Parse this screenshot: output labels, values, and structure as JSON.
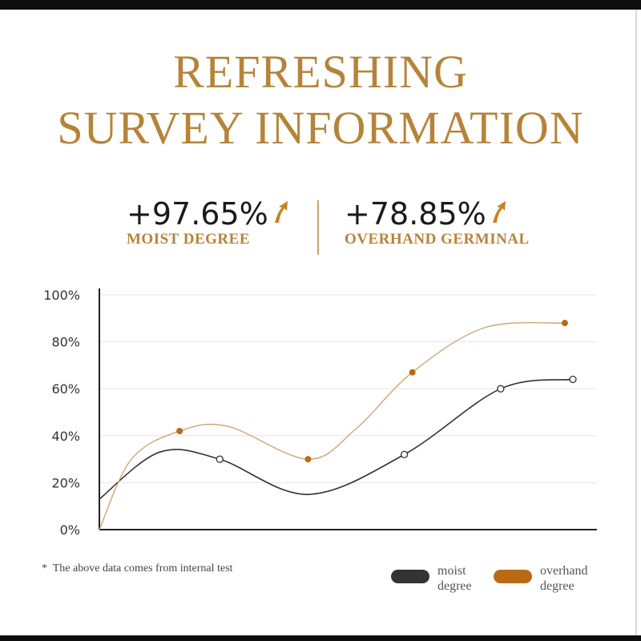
{
  "title": {
    "line1": "REFRESHING",
    "line2": "SURVEY INFORMATION"
  },
  "stats": [
    {
      "value": "+97.65%",
      "label": "MOIST DEGREE"
    },
    {
      "value": "+78.85%",
      "label": "OVERHAND GERMINAL"
    }
  ],
  "colors": {
    "accent": "#b5843a",
    "moist": "#333333",
    "overhand": "#b96a14",
    "overhand_line": "#c9a878"
  },
  "footnote": {
    "mark": "*",
    "text": "The above data comes from internal test"
  },
  "chart_data": {
    "type": "line",
    "title": "",
    "xlabel": "",
    "ylabel": "",
    "ylim": [
      0,
      100
    ],
    "yticks": [
      "0%",
      "20%",
      "40%",
      "60%",
      "80%",
      "100%"
    ],
    "grid": true,
    "legend": "bottom-right",
    "series": [
      {
        "name": "moist degree",
        "line_start": 13,
        "points": [
          {
            "x": 1.5,
            "y": 30
          },
          {
            "x": 3.8,
            "y": 32
          },
          {
            "x": 5.0,
            "y": 60
          },
          {
            "x": 5.9,
            "y": 64
          }
        ],
        "marker": "hollow"
      },
      {
        "name": "overhand degree",
        "line_start": 0,
        "points": [
          {
            "x": 1.0,
            "y": 42
          },
          {
            "x": 2.6,
            "y": 30
          },
          {
            "x": 3.9,
            "y": 67
          },
          {
            "x": 5.8,
            "y": 88
          }
        ],
        "marker": "filled"
      }
    ],
    "legend_labels": {
      "moist_line1": "moist",
      "moist_line2": "degree",
      "overhand_line1": "overhand",
      "overhand_line2": "degree"
    }
  }
}
